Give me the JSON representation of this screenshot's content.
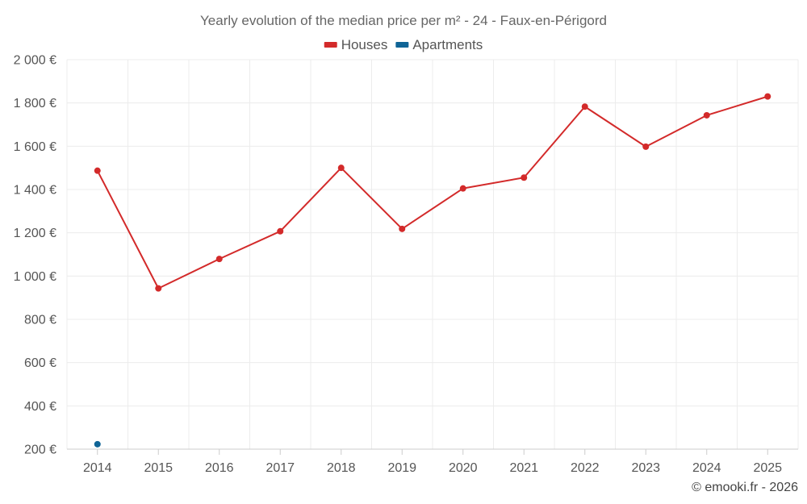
{
  "chart_data": {
    "type": "line",
    "title": "Yearly evolution of the median price per m² - 24 - Faux-en-Périgord",
    "categories": [
      "2014",
      "2015",
      "2016",
      "2017",
      "2018",
      "2019",
      "2020",
      "2021",
      "2022",
      "2023",
      "2024",
      "2025"
    ],
    "series": [
      {
        "name": "Houses",
        "color": "#d32a2a",
        "values": [
          1487,
          943,
          1079,
          1207,
          1500,
          1218,
          1405,
          1455,
          1783,
          1598,
          1743,
          1830
        ]
      },
      {
        "name": "Apartments",
        "color": "#0f6496",
        "values": [
          223,
          null,
          null,
          null,
          null,
          null,
          null,
          null,
          null,
          null,
          null,
          null
        ]
      }
    ],
    "ylim": [
      200,
      2000
    ],
    "yticks": [
      200,
      400,
      600,
      800,
      1000,
      1200,
      1400,
      1600,
      1800,
      2000
    ],
    "ytick_labels": [
      "200 €",
      "400 €",
      "600 €",
      "800 €",
      "1 000 €",
      "1 200 €",
      "1 400 €",
      "1 600 €",
      "1 800 €",
      "2 000 €"
    ],
    "grid": true,
    "legend_position": "top-center"
  },
  "credit": "© emooki.fr - 2026"
}
